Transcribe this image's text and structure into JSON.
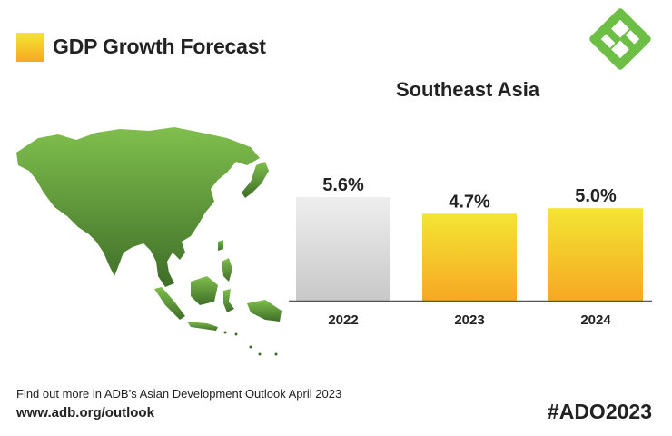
{
  "header": {
    "title": "GDP Growth Forecast"
  },
  "chart_data": {
    "type": "bar",
    "title": "Southeast Asia",
    "categories": [
      "2022",
      "2023",
      "2024"
    ],
    "values": [
      5.6,
      4.7,
      5.0
    ],
    "value_labels": [
      "5.6%",
      "4.7%",
      "5.0%"
    ],
    "bar_styles": [
      "actual",
      "forecast",
      "forecast"
    ],
    "colors": {
      "actual_top": "#eeeeee",
      "actual_bottom": "#c8c8c8",
      "forecast_top": "#f3e533",
      "forecast_bottom": "#f7a823",
      "axis": "#555555"
    },
    "ylim": [
      0,
      5.6
    ]
  },
  "footer": {
    "line1": "Find out more in ADB’s Asian Development Outlook April 2023",
    "line2": "www.adb.org/outlook",
    "hashtag": "#ADO2023"
  },
  "colors": {
    "map_top": "#7fbf4d",
    "map_bottom": "#3f6e28",
    "logo_green": "#6cbe45"
  }
}
